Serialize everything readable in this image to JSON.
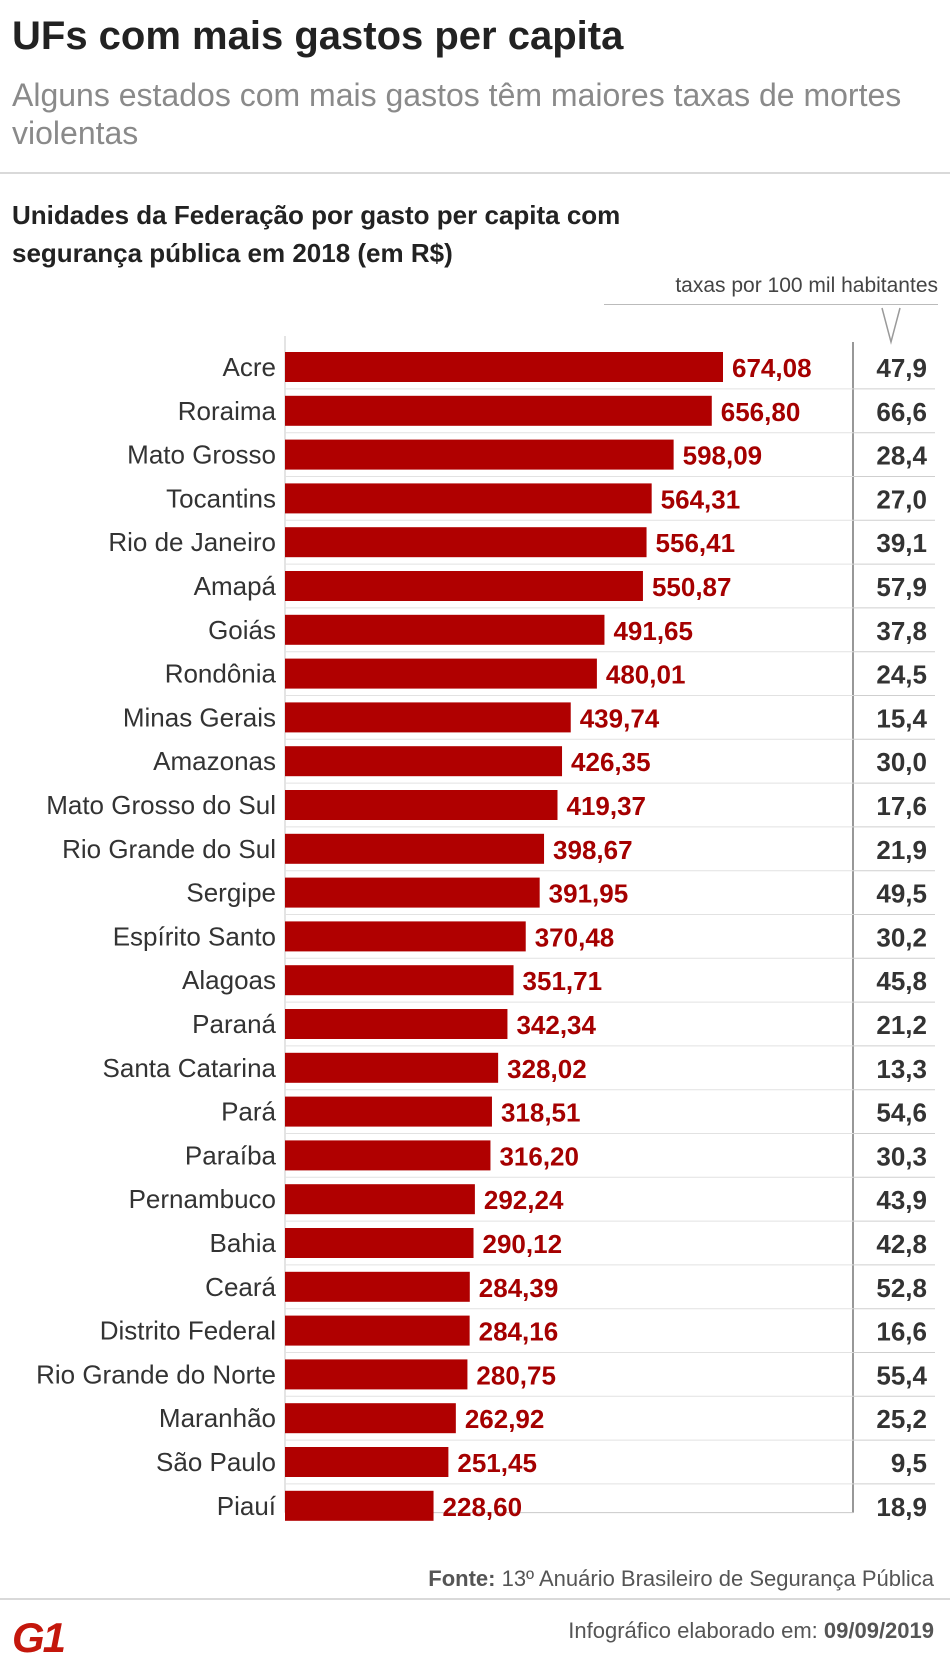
{
  "header": {
    "title": "UFs com mais gastos per capita",
    "subtitle": "Alguns estados com mais gastos têm maiores taxas de mortes violentas"
  },
  "chart_data": {
    "type": "bar",
    "orientation": "horizontal",
    "title": "Unidades da Federação por gasto per capita com segurança pública em 2018 (em R$)",
    "rate_column_label": "taxas por 100 mil habitantes",
    "bar_color": "#b00000",
    "value_label_color": "#a50000",
    "xlim": [
      0,
      674.08
    ],
    "categories": [
      "Acre",
      "Roraima",
      "Mato Grosso",
      "Tocantins",
      "Rio de Janeiro",
      "Amapá",
      "Goiás",
      "Rondônia",
      "Minas Gerais",
      "Amazonas",
      "Mato Grosso do Sul",
      "Rio Grande do Sul",
      "Sergipe",
      "Espírito Santo",
      "Alagoas",
      "Paraná",
      "Santa Catarina",
      "Pará",
      "Paraíba",
      "Pernambuco",
      "Bahia",
      "Ceará",
      "Distrito Federal",
      "Rio Grande do Norte",
      "Maranhão",
      "São Paulo",
      "Piauí"
    ],
    "values": [
      674.08,
      656.8,
      598.09,
      564.31,
      556.41,
      550.87,
      491.65,
      480.01,
      439.74,
      426.35,
      419.37,
      398.67,
      391.95,
      370.48,
      351.71,
      342.34,
      328.02,
      318.51,
      316.2,
      292.24,
      290.12,
      284.39,
      284.16,
      280.75,
      262.92,
      251.45,
      228.6
    ],
    "value_labels": [
      "674,08",
      "656,80",
      "598,09",
      "564,31",
      "556,41",
      "550,87",
      "491,65",
      "480,01",
      "439,74",
      "426,35",
      "419,37",
      "398,67",
      "391,95",
      "370,48",
      "351,71",
      "342,34",
      "328,02",
      "318,51",
      "316,20",
      "292,24",
      "290,12",
      "284,39",
      "284,16",
      "280,75",
      "262,92",
      "251,45",
      "228,60"
    ],
    "rates": [
      "47,9",
      "66,6",
      "28,4",
      "27,0",
      "39,1",
      "57,9",
      "37,8",
      "24,5",
      "15,4",
      "30,0",
      "17,6",
      "21,9",
      "49,5",
      "30,2",
      "45,8",
      "21,2",
      "13,3",
      "54,6",
      "30,3",
      "43,9",
      "42,8",
      "52,8",
      "16,6",
      "55,4",
      "25,2",
      "9,5",
      "18,9"
    ]
  },
  "footer": {
    "source_label": "Fonte:",
    "source_text": "13º Anuário Brasileiro de Segurança Pública",
    "logo_text": "G1",
    "made_label": "Infográfico elaborado em:",
    "made_date": "09/09/2019",
    "logo_color": "#c4170c"
  }
}
